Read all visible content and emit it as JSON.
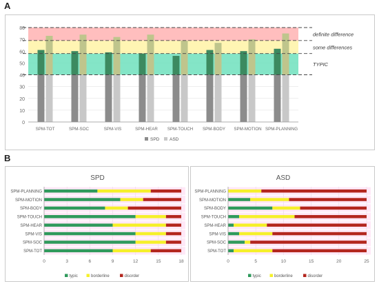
{
  "panels": {
    "a": "A",
    "b": "B"
  },
  "colors": {
    "spd": "#8c8c8c",
    "asd": "#c8c8c8",
    "spd_overlay": "#2e8a58",
    "asd_overlay": "#bcc478",
    "band_typic": "#6fe0bd",
    "band_some": "#fff3a6",
    "band_definite": "#ffb3b3",
    "typic": "#2f9a5c",
    "borderline": "#f5f02a",
    "disorder": "#b3261e",
    "background_tint": "#ffd6f0",
    "grid": "#dcdcdc",
    "axis": "#999999",
    "dash": "#444444"
  },
  "chart_data": [
    {
      "type": "bar",
      "categories": [
        "SPM-TOT",
        "SPM-SOC",
        "SPM-VIS",
        "SPM-HEAR",
        "SPM-TOUCH",
        "SPM-BODY",
        "SPM-MOTION",
        "SPM-PLANNING"
      ],
      "series": [
        {
          "name": "SPD",
          "values": [
            61,
            60,
            59,
            58,
            56,
            61,
            60,
            62
          ]
        },
        {
          "name": "ASD",
          "values": [
            73,
            74,
            72,
            74,
            69,
            67,
            70,
            75
          ]
        }
      ],
      "ylim": [
        0,
        80
      ],
      "yticks": [
        0,
        10,
        20,
        30,
        40,
        50,
        60,
        70,
        80
      ],
      "bands": [
        {
          "label": "TYPIC",
          "from": 40,
          "to": 58
        },
        {
          "label": "some differences",
          "from": 58,
          "to": 69
        },
        {
          "label": "definite difference",
          "from": 69,
          "to": 80
        }
      ],
      "legend": "bottom",
      "grid": true
    },
    {
      "type": "bar",
      "orientation": "horizontal-stacked",
      "title": "SPD",
      "categories": [
        "SPM-PLANNING",
        "SPM-MOTION",
        "SPM-BODY",
        "SPM-TOUCH",
        "SPM-HEAR",
        "SPM-VIS",
        "SPM-SOC",
        "SPM-TOT"
      ],
      "series": [
        {
          "name": "typic",
          "values": [
            7,
            10,
            8,
            12,
            9,
            12,
            12,
            9
          ]
        },
        {
          "name": "borderline",
          "values": [
            7,
            3,
            3,
            4,
            7,
            4,
            4,
            5
          ]
        },
        {
          "name": "disorder",
          "values": [
            4,
            5,
            7,
            2,
            2,
            2,
            2,
            4
          ]
        }
      ],
      "xlim": [
        0,
        18
      ],
      "xticks": [
        0,
        3,
        6,
        9,
        12,
        15,
        18
      ],
      "legend": "bottom"
    },
    {
      "type": "bar",
      "orientation": "horizontal-stacked",
      "title": "ASD",
      "categories": [
        "SPM-PLANNING",
        "SPM-MOTION",
        "SPM-BODY",
        "SPM-TOUCH",
        "SPM-HEAR",
        "SPM-VIS",
        "SPM-SOC",
        "SPM-TOT"
      ],
      "series": [
        {
          "name": "typic",
          "values": [
            0,
            4,
            8,
            2,
            1,
            2,
            3,
            1
          ]
        },
        {
          "name": "borderline",
          "values": [
            6,
            7,
            5,
            10,
            6,
            6,
            1,
            7
          ]
        },
        {
          "name": "disorder",
          "values": [
            19,
            14,
            12,
            13,
            18,
            17,
            21,
            17
          ]
        }
      ],
      "xlim": [
        0,
        25
      ],
      "xticks": [
        0,
        5,
        10,
        15,
        20,
        25
      ],
      "legend": "bottom"
    }
  ]
}
